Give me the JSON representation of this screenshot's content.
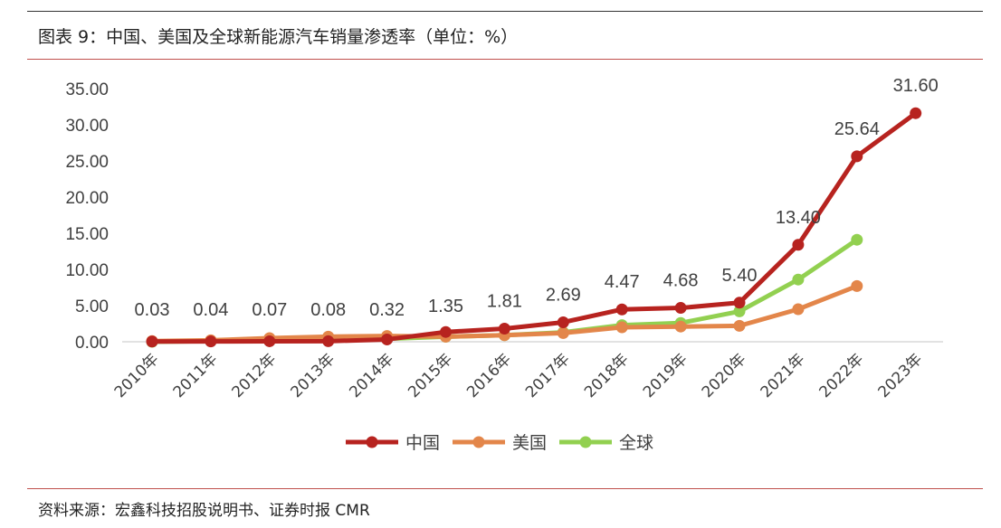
{
  "title": "图表 9：中国、美国及全球新能源汽车销量渗透率（单位：%）",
  "source": "资料来源：宏鑫科技招股说明书、证券时报 CMR",
  "chart_data": {
    "type": "line",
    "categories": [
      "2010年",
      "2011年",
      "2012年",
      "2013年",
      "2014年",
      "2015年",
      "2016年",
      "2017年",
      "2018年",
      "2019年",
      "2020年",
      "2021年",
      "2022年",
      "2023年"
    ],
    "yticks": [
      "0.00",
      "5.00",
      "10.00",
      "15.00",
      "20.00",
      "25.00",
      "30.00",
      "35.00"
    ],
    "ylim": [
      0,
      35
    ],
    "series": [
      {
        "name": "中国",
        "color": "#b7231f",
        "values": [
          0.03,
          0.04,
          0.07,
          0.08,
          0.32,
          1.35,
          1.81,
          2.69,
          4.47,
          4.68,
          5.4,
          13.4,
          25.64,
          31.6
        ],
        "labels": [
          "0.03",
          "0.04",
          "0.07",
          "0.08",
          "0.32",
          "1.35",
          "1.81",
          "2.69",
          "4.47",
          "4.68",
          "5.40",
          "13.40",
          "25.64",
          "31.60"
        ]
      },
      {
        "name": "美国",
        "color": "#e3864a",
        "values": [
          0.1,
          0.2,
          0.5,
          0.7,
          0.8,
          0.7,
          0.9,
          1.2,
          2.0,
          2.1,
          2.2,
          4.5,
          7.7,
          null
        ]
      },
      {
        "name": "全球",
        "color": "#92d050",
        "values": [
          0.0,
          0.1,
          0.1,
          0.2,
          0.4,
          0.7,
          0.9,
          1.3,
          2.3,
          2.6,
          4.2,
          8.6,
          14.1,
          null
        ]
      }
    ],
    "legend": "bottom"
  }
}
